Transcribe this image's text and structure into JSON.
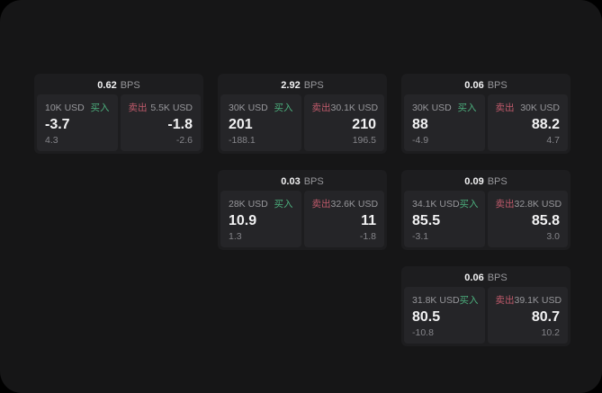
{
  "theme": {
    "panel_bg": "#161617",
    "card_bg": "#1d1d1f",
    "tile_bg": "#252528",
    "text_primary": "#f2f2f3",
    "text_secondary": "#97979b",
    "text_dim": "#85858a",
    "buy_green": "#4caf7d",
    "sell_red": "#c05a6b"
  },
  "board": {
    "columns": [
      {
        "cards": [
          {
            "bps_value": "0.62",
            "bps_unit": "BPS",
            "buy": {
              "amount": "10K USD",
              "label": "买入",
              "value": "-3.7",
              "sub": "4.3"
            },
            "sell": {
              "label": "卖出",
              "amount": "5.5K USD",
              "value": "-1.8",
              "sub": "-2.6"
            }
          }
        ]
      },
      {
        "cards": [
          {
            "bps_value": "2.92",
            "bps_unit": "BPS",
            "buy": {
              "amount": "30K USD",
              "label": "买入",
              "value": "201",
              "sub": "-188.1"
            },
            "sell": {
              "label": "卖出",
              "amount": "30.1K USD",
              "value": "210",
              "sub": "196.5"
            }
          },
          {
            "bps_value": "0.03",
            "bps_unit": "BPS",
            "buy": {
              "amount": "28K USD",
              "label": "买入",
              "value": "10.9",
              "sub": "1.3"
            },
            "sell": {
              "label": "卖出",
              "amount": "32.6K USD",
              "value": "11",
              "sub": "-1.8"
            }
          }
        ]
      },
      {
        "cards": [
          {
            "bps_value": "0.06",
            "bps_unit": "BPS",
            "buy": {
              "amount": "30K USD",
              "label": "买入",
              "value": "88",
              "sub": "-4.9"
            },
            "sell": {
              "label": "卖出",
              "amount": "30K USD",
              "value": "88.2",
              "sub": "4.7"
            }
          },
          {
            "bps_value": "0.09",
            "bps_unit": "BPS",
            "buy": {
              "amount": "34.1K USD",
              "label": "买入",
              "value": "85.5",
              "sub": "-3.1"
            },
            "sell": {
              "label": "卖出",
              "amount": "32.8K USD",
              "value": "85.8",
              "sub": "3.0"
            }
          },
          {
            "bps_value": "0.06",
            "bps_unit": "BPS",
            "buy": {
              "amount": "31.8K USD",
              "label": "买入",
              "value": "80.5",
              "sub": "-10.8"
            },
            "sell": {
              "label": "卖出",
              "amount": "39.1K USD",
              "value": "80.7",
              "sub": "10.2"
            }
          }
        ]
      }
    ]
  }
}
